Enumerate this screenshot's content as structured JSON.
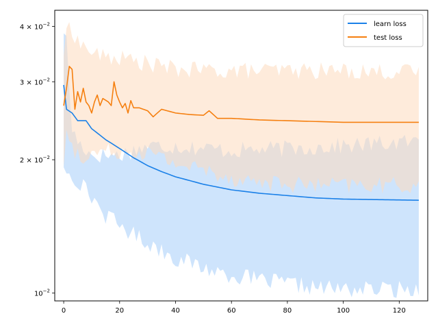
{
  "chart_data": {
    "type": "line",
    "title": "",
    "xlabel": "",
    "ylabel": "",
    "x_range": [
      0,
      127
    ],
    "xlim": [
      -3.2,
      130.2
    ],
    "ylim": [
      0.0096,
      0.0435
    ],
    "y_scale": "log",
    "grid": false,
    "legend_position": "top-right",
    "x_ticks": [
      {
        "value": 0,
        "label": "0"
      },
      {
        "value": 20,
        "label": "20"
      },
      {
        "value": 40,
        "label": "40"
      },
      {
        "value": 60,
        "label": "60"
      },
      {
        "value": 80,
        "label": "80"
      },
      {
        "value": 100,
        "label": "100"
      },
      {
        "value": 120,
        "label": "120"
      }
    ],
    "y_ticks": [
      {
        "value": 0.01,
        "mantissa": "",
        "exponent": "−2"
      },
      {
        "value": 0.02,
        "mantissa": "2 × ",
        "exponent": "−2"
      },
      {
        "value": 0.03,
        "mantissa": "3 × ",
        "exponent": "−2"
      },
      {
        "value": 0.04,
        "mantissa": "4 × ",
        "exponent": "−2"
      }
    ],
    "series": [
      {
        "name": "learn loss",
        "color": "#1f77b4",
        "line_color": "#1a80e8",
        "band_color": "#a6cdf9",
        "mean_keypoints": [
          [
            0,
            0.0295
          ],
          [
            1,
            0.026
          ],
          [
            3,
            0.0255
          ],
          [
            5,
            0.0245
          ],
          [
            8,
            0.0245
          ],
          [
            10,
            0.0235
          ],
          [
            15,
            0.0222
          ],
          [
            20,
            0.0212
          ],
          [
            25,
            0.0202
          ],
          [
            30,
            0.0194
          ],
          [
            35,
            0.0188
          ],
          [
            40,
            0.0183
          ],
          [
            50,
            0.0176
          ],
          [
            60,
            0.0171
          ],
          [
            70,
            0.0168
          ],
          [
            80,
            0.0166
          ],
          [
            90,
            0.0164
          ],
          [
            100,
            0.0163
          ],
          [
            127,
            0.0162
          ]
        ],
        "upper_keypoints": [
          [
            0,
            0.0395
          ],
          [
            1,
            0.037
          ],
          [
            2,
            0.029
          ],
          [
            3,
            0.0235
          ],
          [
            5,
            0.022
          ],
          [
            10,
            0.0205
          ],
          [
            20,
            0.0205
          ],
          [
            30,
            0.0215
          ],
          [
            40,
            0.0215
          ],
          [
            60,
            0.021
          ],
          [
            80,
            0.0212
          ],
          [
            100,
            0.0215
          ],
          [
            127,
            0.022
          ]
        ],
        "lower_keypoints": [
          [
            0,
            0.0195
          ],
          [
            3,
            0.0185
          ],
          [
            5,
            0.018
          ],
          [
            10,
            0.0165
          ],
          [
            15,
            0.015
          ],
          [
            20,
            0.0142
          ],
          [
            30,
            0.013
          ],
          [
            40,
            0.012
          ],
          [
            50,
            0.0114
          ],
          [
            60,
            0.011
          ],
          [
            70,
            0.0107
          ],
          [
            80,
            0.0105
          ],
          [
            90,
            0.0103
          ],
          [
            100,
            0.0102
          ],
          [
            127,
            0.0102
          ]
        ]
      },
      {
        "name": "test loss",
        "color": "#ff7f0e",
        "line_color": "#f57f0f",
        "band_color": "#fedbbd",
        "mean_keypoints": [
          [
            0,
            0.0265
          ],
          [
            1,
            0.029
          ],
          [
            2,
            0.0325
          ],
          [
            3,
            0.032
          ],
          [
            4,
            0.026
          ],
          [
            5,
            0.0285
          ],
          [
            6,
            0.027
          ],
          [
            7,
            0.029
          ],
          [
            8,
            0.027
          ],
          [
            9,
            0.0265
          ],
          [
            10,
            0.0255
          ],
          [
            11,
            0.027
          ],
          [
            12,
            0.028
          ],
          [
            13,
            0.0265
          ],
          [
            14,
            0.0275
          ],
          [
            16,
            0.027
          ],
          [
            17,
            0.0265
          ],
          [
            18,
            0.03
          ],
          [
            19,
            0.028
          ],
          [
            20,
            0.027
          ],
          [
            21,
            0.0262
          ],
          [
            22,
            0.0268
          ],
          [
            23,
            0.0255
          ],
          [
            24,
            0.0272
          ],
          [
            25,
            0.0262
          ],
          [
            27,
            0.0262
          ],
          [
            30,
            0.0258
          ],
          [
            32,
            0.025
          ],
          [
            35,
            0.026
          ],
          [
            40,
            0.0255
          ],
          [
            45,
            0.0253
          ],
          [
            50,
            0.0252
          ],
          [
            52,
            0.0258
          ],
          [
            55,
            0.0248
          ],
          [
            60,
            0.0248
          ],
          [
            70,
            0.0246
          ],
          [
            80,
            0.0245
          ],
          [
            90,
            0.0244
          ],
          [
            100,
            0.0243
          ],
          [
            127,
            0.0243
          ]
        ],
        "upper_keypoints": [
          [
            0,
            0.035
          ],
          [
            1,
            0.038
          ],
          [
            2,
            0.0405
          ],
          [
            3,
            0.0395
          ],
          [
            5,
            0.037
          ],
          [
            10,
            0.035
          ],
          [
            15,
            0.034
          ],
          [
            20,
            0.034
          ],
          [
            30,
            0.033
          ],
          [
            40,
            0.032
          ],
          [
            60,
            0.0318
          ],
          [
            80,
            0.0318
          ],
          [
            100,
            0.0318
          ],
          [
            127,
            0.0315
          ]
        ],
        "lower_keypoints": [
          [
            0,
            0.0198
          ],
          [
            1,
            0.0225
          ],
          [
            2,
            0.0228
          ],
          [
            4,
            0.0205
          ],
          [
            8,
            0.0205
          ],
          [
            12,
            0.0208
          ],
          [
            20,
            0.021
          ],
          [
            30,
            0.0208
          ],
          [
            40,
            0.0196
          ],
          [
            50,
            0.019
          ],
          [
            60,
            0.0182
          ],
          [
            70,
            0.0178
          ],
          [
            80,
            0.0176
          ],
          [
            90,
            0.0175
          ],
          [
            100,
            0.0175
          ],
          [
            127,
            0.0175
          ]
        ]
      }
    ]
  }
}
